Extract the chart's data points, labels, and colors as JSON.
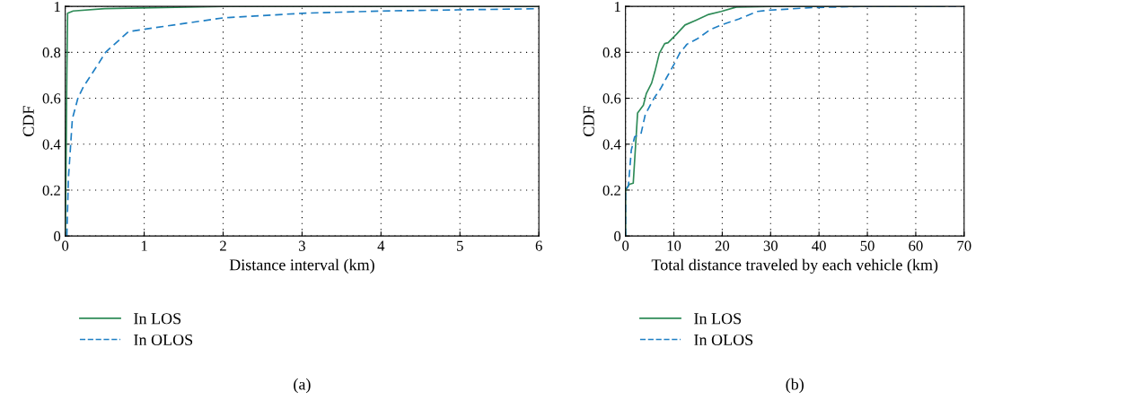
{
  "chart_data": [
    {
      "type": "line",
      "xlabel": "Distance interval (km)",
      "ylabel": "CDF",
      "xlim": [
        0,
        6
      ],
      "ylim": [
        0,
        1
      ],
      "xticks": [
        0,
        1,
        2,
        3,
        4,
        5,
        6
      ],
      "yticks": [
        0,
        0.2,
        0.4,
        0.6,
        0.8,
        1
      ],
      "grid": true,
      "legend": "bottom",
      "annotations": [
        "(a)"
      ],
      "series": [
        {
          "name": "In LOS",
          "color": "#2e8b57",
          "line_style": "solid",
          "x": [
            0,
            0.01,
            0.02,
            0.03,
            0.1,
            0.5,
            2,
            6
          ],
          "values": [
            0,
            0.3,
            0.7,
            0.97,
            0.98,
            0.99,
            1,
            1
          ]
        },
        {
          "name": "In OLOS",
          "color": "#1f7fc4",
          "line_style": "dashed",
          "x": [
            0.02,
            0.04,
            0.09,
            0.16,
            0.23,
            0.42,
            0.51,
            0.8,
            0.99,
            2,
            3,
            4,
            6
          ],
          "values": [
            0,
            0.25,
            0.51,
            0.6,
            0.65,
            0.75,
            0.8,
            0.89,
            0.9,
            0.95,
            0.97,
            0.98,
            0.99
          ]
        }
      ]
    },
    {
      "type": "line",
      "xlabel": "Total distance traveled by each vehicle (km)",
      "ylabel": "CDF",
      "xlim": [
        0,
        70
      ],
      "ylim": [
        0,
        1
      ],
      "xticks": [
        0,
        10,
        20,
        30,
        40,
        50,
        60,
        70
      ],
      "yticks": [
        0,
        0.2,
        0.4,
        0.6,
        0.8,
        1
      ],
      "grid": true,
      "legend": "bottom",
      "annotations": [
        "(b)"
      ],
      "series": [
        {
          "name": "In LOS",
          "color": "#2e8b57",
          "line_style": "solid",
          "x": [
            0,
            0,
            0.8,
            1.6,
            2.1,
            2.5,
            3.7,
            4.3,
            5.4,
            6.1,
            7.0,
            8.1,
            8.8,
            10.5,
            12.3,
            14.5,
            17.2,
            19.8,
            22.9,
            30,
            66
          ],
          "values": [
            0,
            0.2,
            0.225,
            0.23,
            0.4,
            0.536,
            0.57,
            0.62,
            0.666,
            0.718,
            0.796,
            0.838,
            0.842,
            0.878,
            0.919,
            0.939,
            0.965,
            0.978,
            0.997,
            1,
            1
          ]
        },
        {
          "name": "In OLOS",
          "color": "#1f7fc4",
          "line_style": "dashed",
          "x": [
            0,
            0,
            0.6,
            1.2,
            1.9,
            3.2,
            4.1,
            5.9,
            7.2,
            8.5,
            10.1,
            11.2,
            12.7,
            15.0,
            17.6,
            19.8,
            23.4,
            27.3,
            30,
            38.8,
            49,
            70
          ],
          "values": [
            0,
            0.2,
            0.218,
            0.374,
            0.432,
            0.445,
            0.53,
            0.6,
            0.64,
            0.69,
            0.75,
            0.796,
            0.835,
            0.861,
            0.9,
            0.919,
            0.945,
            0.978,
            0.984,
            0.995,
            1,
            1
          ]
        }
      ]
    }
  ]
}
